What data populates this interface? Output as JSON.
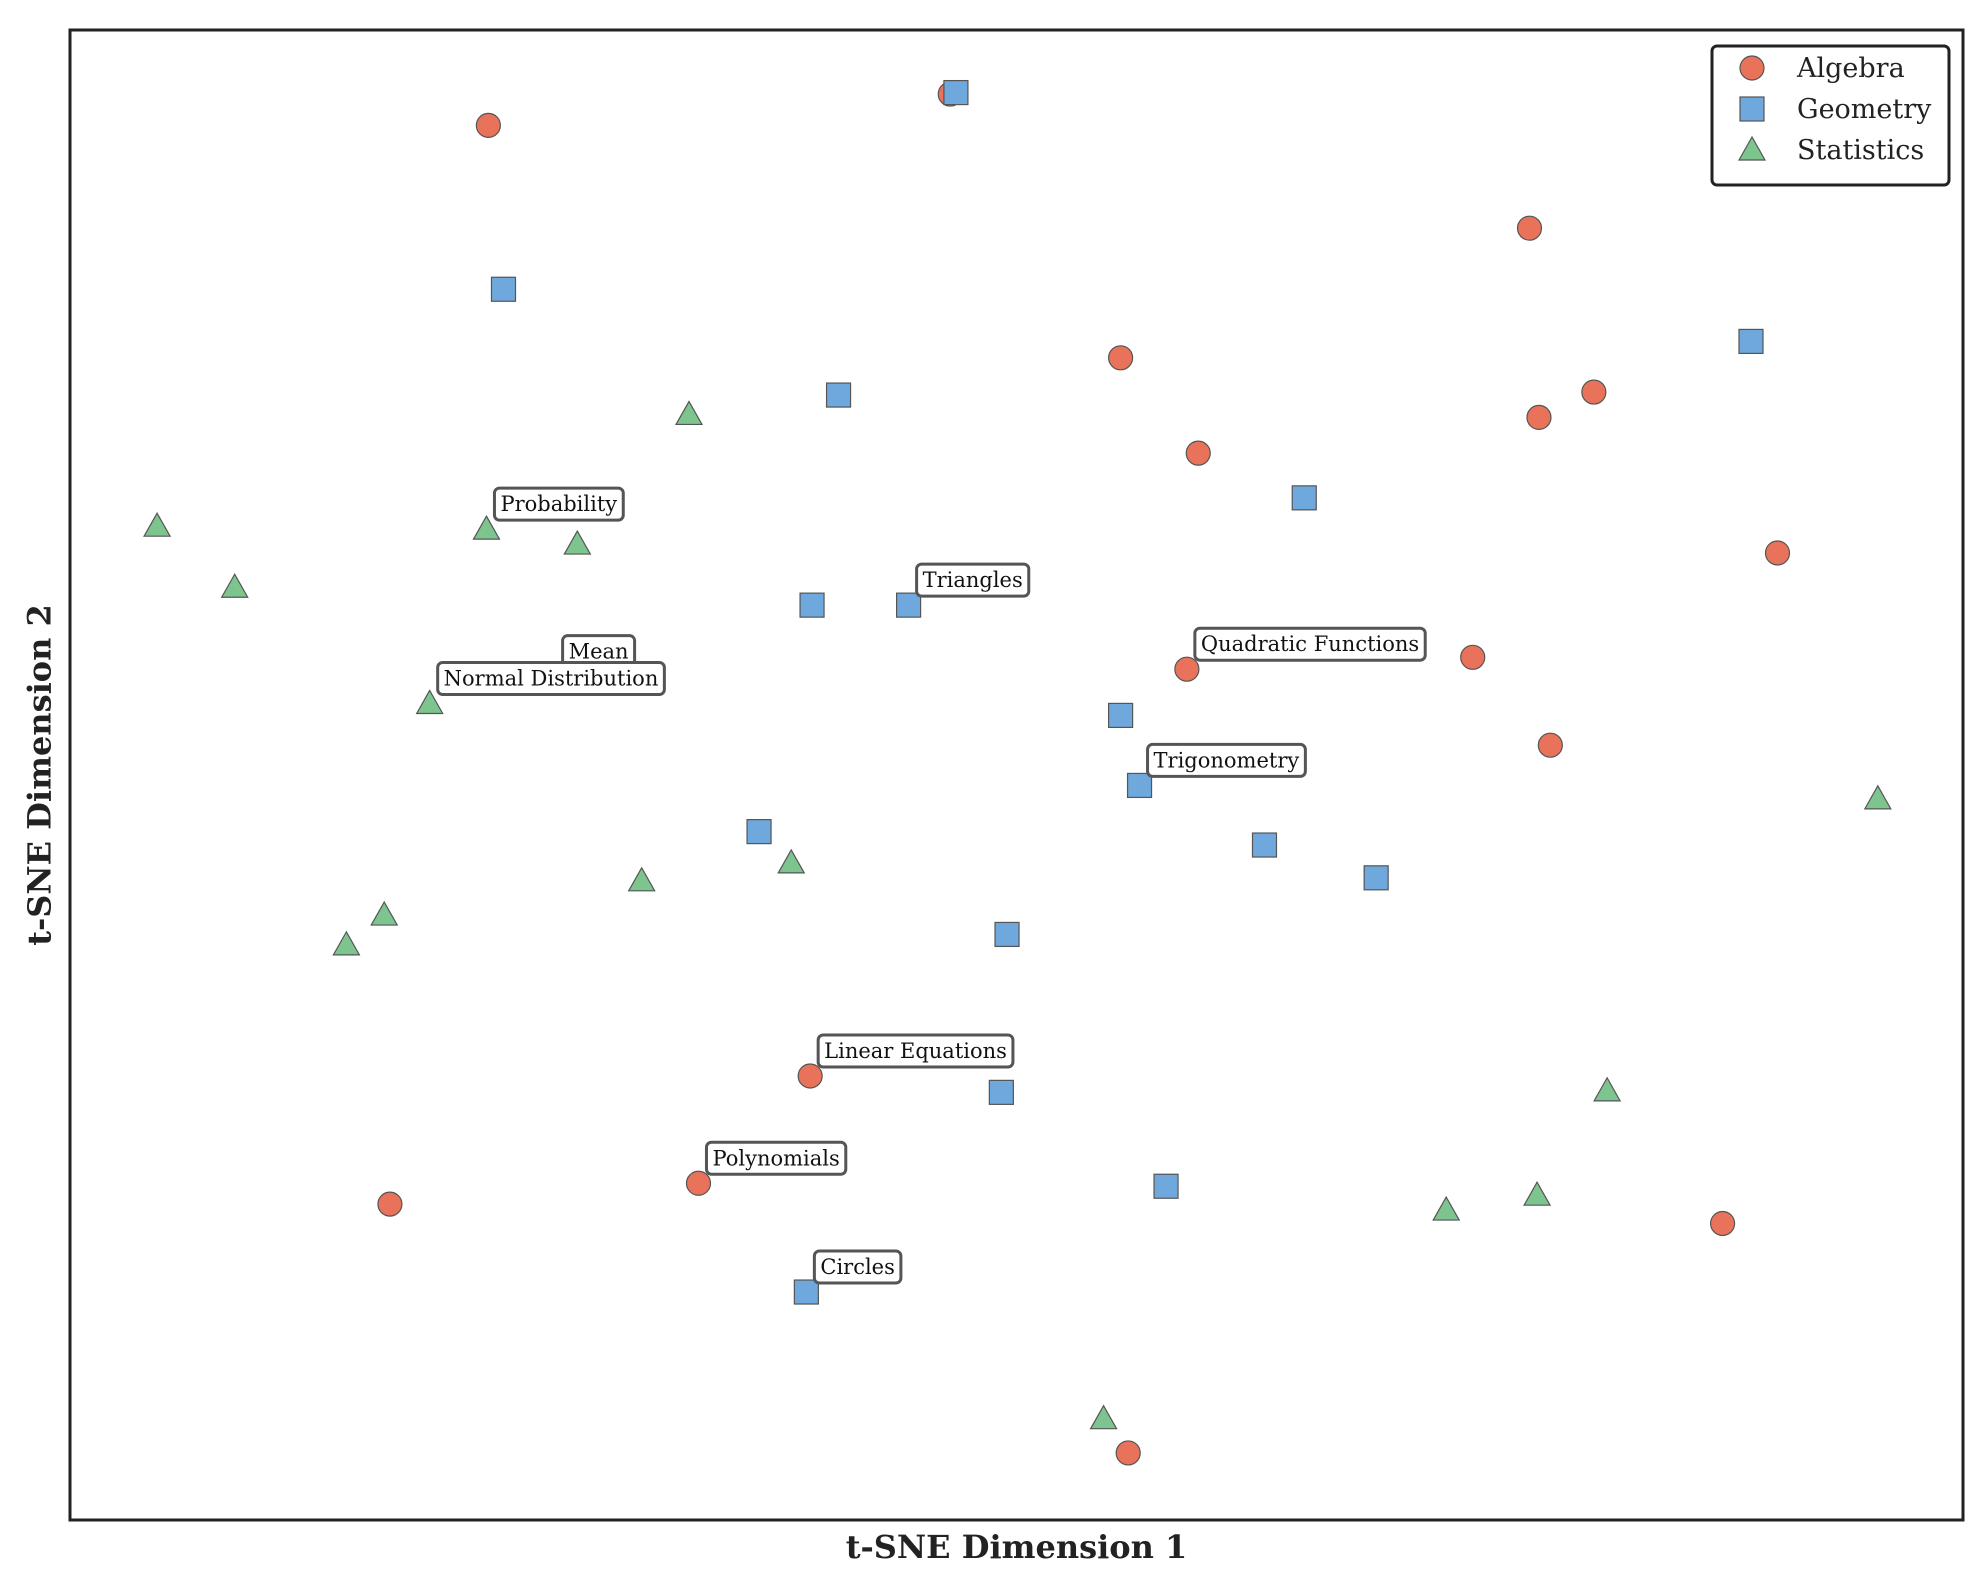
{
  "chart_data": {
    "type": "scatter",
    "title": "",
    "xlabel": "t-SNE Dimension 1",
    "ylabel": "t-SNE Dimension 2",
    "xlim": [
      0,
      1000
    ],
    "ylim": [
      0,
      1000
    ],
    "x_ticks_shown": false,
    "y_ticks_shown": false,
    "grid": false,
    "legend_position": "top-right",
    "series": [
      {
        "name": "Algebra",
        "marker": "circle",
        "color": "#E8735A",
        "points": [
          {
            "x": 221,
            "y": 936
          },
          {
            "x": 465,
            "y": 957
          },
          {
            "x": 771,
            "y": 867
          },
          {
            "x": 555,
            "y": 780
          },
          {
            "x": 596,
            "y": 716
          },
          {
            "x": 776,
            "y": 740
          },
          {
            "x": 805,
            "y": 757
          },
          {
            "x": 902,
            "y": 649
          },
          {
            "x": 741,
            "y": 579
          },
          {
            "x": 782,
            "y": 520
          },
          {
            "x": 590,
            "y": 571
          },
          {
            "x": 391,
            "y": 298
          },
          {
            "x": 332,
            "y": 226
          },
          {
            "x": 169,
            "y": 212
          },
          {
            "x": 873,
            "y": 199
          },
          {
            "x": 559,
            "y": 45
          }
        ]
      },
      {
        "name": "Geometry",
        "marker": "square",
        "color": "#6FA8DC",
        "points": [
          {
            "x": 468,
            "y": 958
          },
          {
            "x": 229,
            "y": 826
          },
          {
            "x": 406,
            "y": 755
          },
          {
            "x": 888,
            "y": 791
          },
          {
            "x": 652,
            "y": 686
          },
          {
            "x": 392,
            "y": 614
          },
          {
            "x": 443,
            "y": 614
          },
          {
            "x": 555,
            "y": 540
          },
          {
            "x": 565,
            "y": 493
          },
          {
            "x": 364,
            "y": 462
          },
          {
            "x": 631,
            "y": 453
          },
          {
            "x": 690,
            "y": 431
          },
          {
            "x": 495,
            "y": 393
          },
          {
            "x": 492,
            "y": 287
          },
          {
            "x": 579,
            "y": 224
          },
          {
            "x": 389,
            "y": 153
          }
        ]
      },
      {
        "name": "Statistics",
        "marker": "triangle",
        "color": "#7DC48F",
        "points": [
          {
            "x": 327,
            "y": 742
          },
          {
            "x": 46,
            "y": 667
          },
          {
            "x": 220,
            "y": 665
          },
          {
            "x": 268,
            "y": 655
          },
          {
            "x": 87,
            "y": 626
          },
          {
            "x": 190,
            "y": 548
          },
          {
            "x": 955,
            "y": 484
          },
          {
            "x": 381,
            "y": 441
          },
          {
            "x": 302,
            "y": 429
          },
          {
            "x": 166,
            "y": 406
          },
          {
            "x": 146,
            "y": 386
          },
          {
            "x": 812,
            "y": 288
          },
          {
            "x": 775,
            "y": 218
          },
          {
            "x": 727,
            "y": 208
          },
          {
            "x": 546,
            "y": 68
          }
        ]
      }
    ],
    "annotations": [
      {
        "text": "Probability",
        "x": 220,
        "y": 665
      },
      {
        "text": "Mean",
        "x": 256,
        "y": 566
      },
      {
        "text": "Normal Distribution",
        "x": 190,
        "y": 548
      },
      {
        "text": "Triangles",
        "x": 443,
        "y": 614
      },
      {
        "text": "Quadratic Functions",
        "x": 590,
        "y": 571
      },
      {
        "text": "Trigonometry",
        "x": 565,
        "y": 493
      },
      {
        "text": "Linear Equations",
        "x": 391,
        "y": 298
      },
      {
        "text": "Polynomials",
        "x": 332,
        "y": 226
      },
      {
        "text": "Circles",
        "x": 389,
        "y": 153
      }
    ]
  }
}
